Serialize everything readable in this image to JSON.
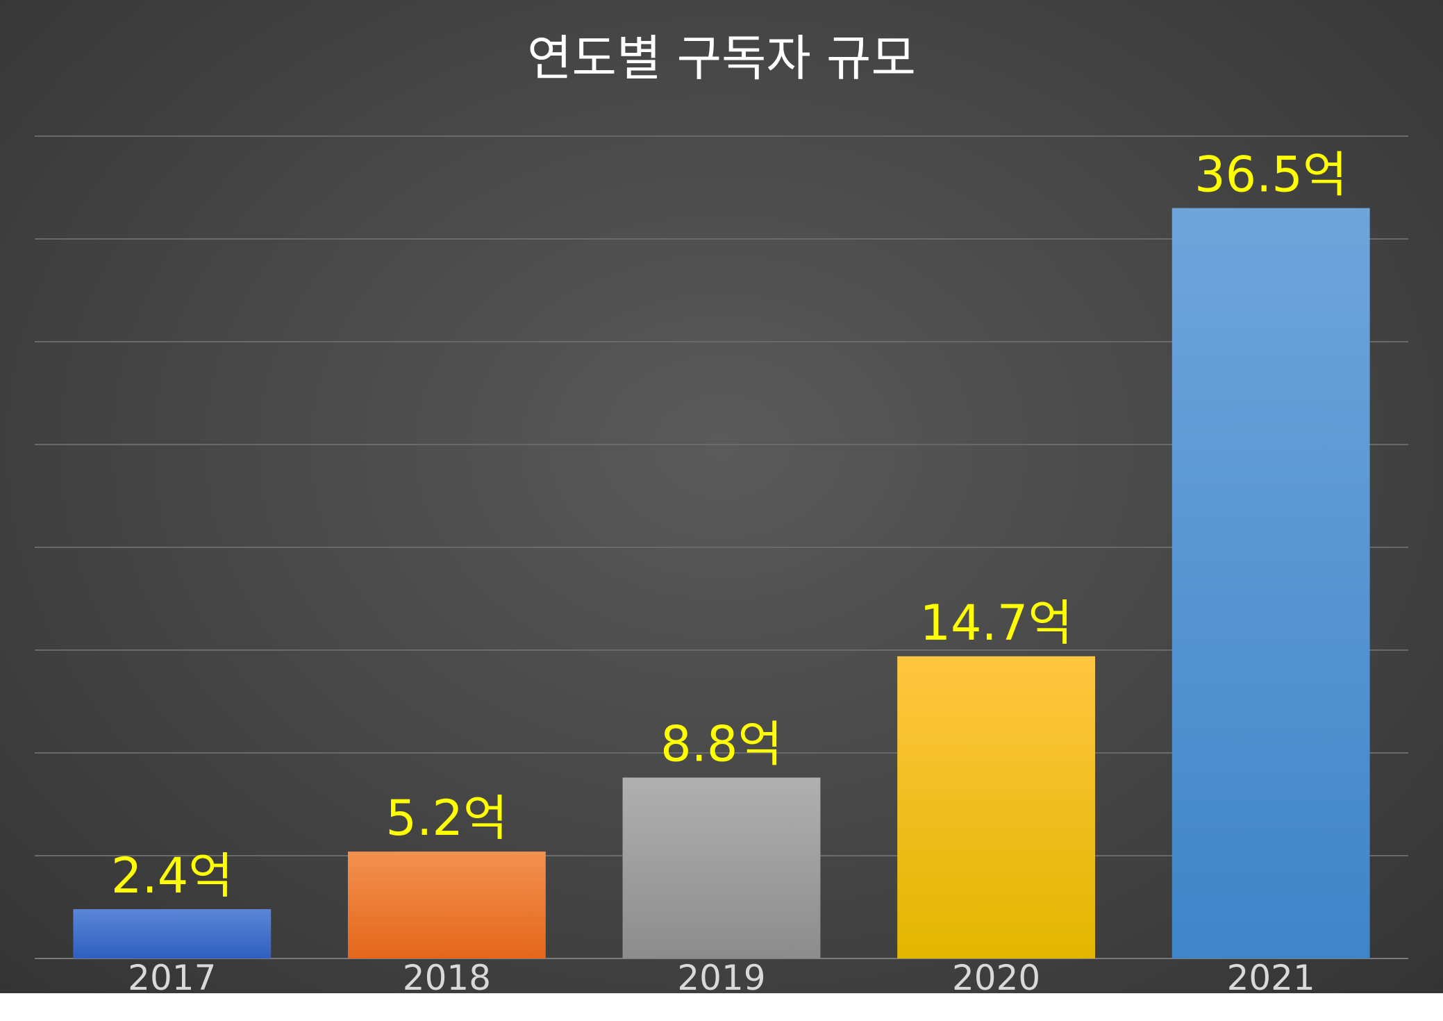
{
  "chart_data": {
    "type": "bar",
    "title": "연도별 구독자 규모",
    "categories": [
      "2017",
      "2018",
      "2019",
      "2020",
      "2021"
    ],
    "values": [
      2.4,
      5.2,
      8.8,
      14.7,
      36.5
    ],
    "data_labels": [
      "2.4억",
      "5.2억",
      "8.8억",
      "14.7억",
      "36.5억"
    ],
    "ylim": [
      0,
      40
    ],
    "grid": true,
    "legend": "none",
    "bar_colors": [
      [
        "#5b86d8",
        "#2f5fbf"
      ],
      [
        "#f39150",
        "#e4661a"
      ],
      [
        "#b0b0b0",
        "#8c8c8c"
      ],
      [
        "#ffc640",
        "#e2b600"
      ],
      [
        "#6fa5db",
        "#3f85c8"
      ]
    ],
    "background": "#474747",
    "label_color": "#ffff00"
  }
}
